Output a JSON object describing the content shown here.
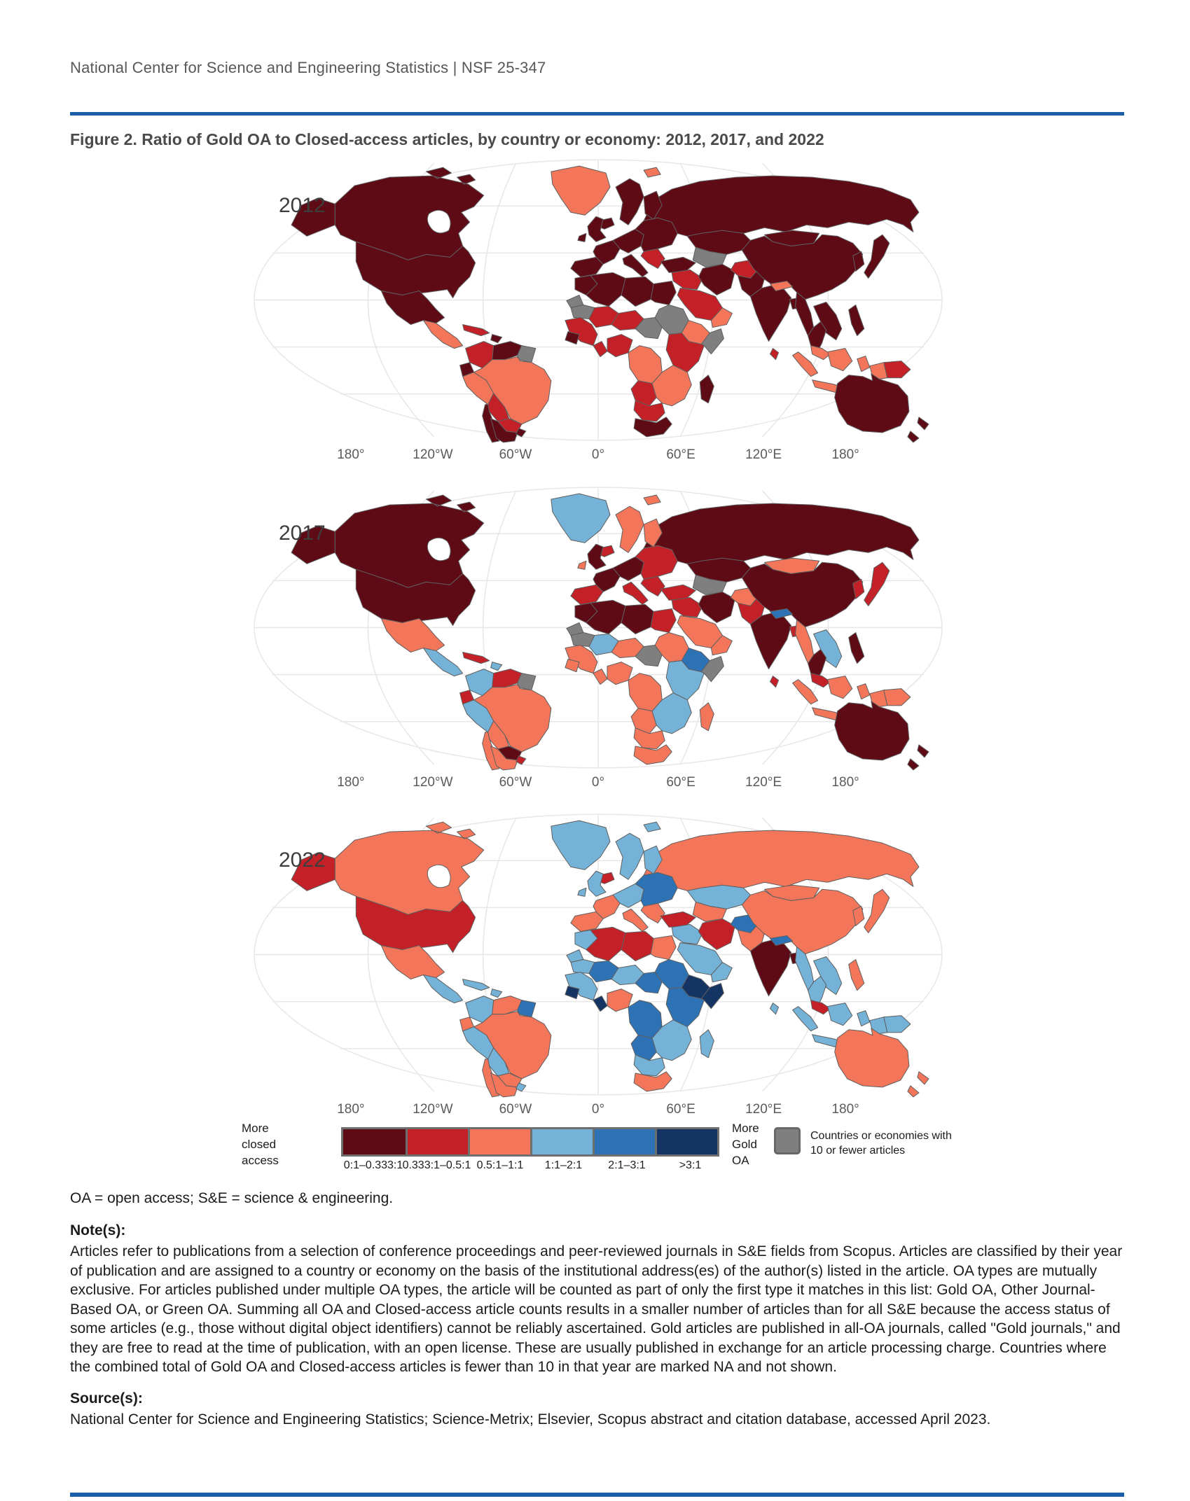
{
  "brand": {
    "rule_blue": "#1a5da9"
  },
  "header": {
    "text": "National Center for Science and Engineering Statistics  |  NSF 25-347"
  },
  "figure": {
    "title": "Figure 2. Ratio of Gold OA to Closed-access articles, by country or economy: 2012, 2017, and 2022"
  },
  "chart_data": {
    "type": "heatmap",
    "subtype": "world-choropleth-small-multiples",
    "title": "Ratio of Gold OA to Closed-access articles, by country or economy",
    "longitude_ticks": [
      "180°",
      "120°W",
      "60°W",
      "0°",
      "60°E",
      "120°E",
      "180°"
    ],
    "legend": {
      "left_label_lines": [
        "More",
        "closed",
        "access"
      ],
      "right_label_lines": [
        "More",
        "Gold",
        "OA"
      ],
      "categories": [
        {
          "label": "0:1–0.333:1",
          "color": "#5e0b16"
        },
        {
          "label": "0.333:1–0.5:1",
          "color": "#c32127"
        },
        {
          "label": "0.5:1–1:1",
          "color": "#f4765a"
        },
        {
          "label": "1:1–2:1",
          "color": "#74b2d8"
        },
        {
          "label": "2:1–3:1",
          "color": "#2d72b5"
        },
        {
          "label": ">3:1",
          "color": "#143563"
        }
      ],
      "na": {
        "label": "Countries or economies with 10 or fewer articles",
        "color": "#7f7f7f"
      }
    },
    "maps": [
      {
        "year": "2012",
        "regions": {
          "alaska": 0,
          "canada": 0,
          "greenland": 2,
          "iceland": 0,
          "svalbard": 2,
          "usa": 0,
          "mexico": 0,
          "camerica": 2,
          "cuba": 1,
          "hispaniola": 0,
          "colombia": 1,
          "venezuela": 0,
          "guyanas": "na",
          "ecuador": 0,
          "peru": 2,
          "brazil": 2,
          "bolivia": 1,
          "paraguay": 1,
          "chile": 0,
          "argentina": 0,
          "uruguay": 0,
          "uk": 0,
          "ireland": 0,
          "scandinavia": 0,
          "finland": 0,
          "iberia": 0,
          "france": 0,
          "centeurope": 0,
          "italy": 0,
          "balkans": 1,
          "easteurope": 0,
          "russia": 0,
          "kazakhstan": 0,
          "centralasia": "na",
          "turkey": 0,
          "levant_iraq": 1,
          "iran": 0,
          "afghanistan": 1,
          "pakistan": 0,
          "saudi": 1,
          "yemen_oman": 2,
          "india": 0,
          "nepal": 2,
          "bangladesh": 0,
          "srilanka": 1,
          "china": 0,
          "mongolia": 0,
          "korea": 0,
          "japan": 0,
          "myanmar": 0,
          "thailand": 0,
          "indochina": 0,
          "malaysia": 2,
          "indonesia": 2,
          "philippines": 0,
          "png": 1,
          "australia": 0,
          "newzealand": 0,
          "morocco": 0,
          "wsahara": "na",
          "algeria": 0,
          "libya": 0,
          "egypt": 0,
          "mauritania": "na",
          "mali": 1,
          "niger": 1,
          "chad": "na",
          "sudan": "na",
          "westafrica": 1,
          "guinea": 0,
          "ghana": 1,
          "nigeria": 1,
          "congo": 2,
          "horn": 2,
          "somalia": "na",
          "eastafrica": 1,
          "angola": 1,
          "zambia_moz": 2,
          "namibia_bots": 1,
          "southafrica": 0,
          "madagascar": 0
        }
      },
      {
        "year": "2017",
        "regions": {
          "alaska": 0,
          "canada": 0,
          "greenland": 3,
          "iceland": 1,
          "svalbard": 2,
          "usa": 0,
          "mexico": 2,
          "camerica": 3,
          "cuba": 1,
          "hispaniola": 3,
          "colombia": 3,
          "venezuela": 1,
          "guyanas": "na",
          "ecuador": 1,
          "peru": 3,
          "brazil": 2,
          "bolivia": 2,
          "paraguay": 0,
          "chile": 2,
          "argentina": 2,
          "uruguay": 1,
          "uk": 0,
          "ireland": 2,
          "scandinavia": 2,
          "finland": 2,
          "iberia": 1,
          "france": 0,
          "centeurope": 0,
          "italy": 1,
          "balkans": 1,
          "easteurope": 1,
          "russia": 0,
          "kazakhstan": 0,
          "centralasia": "na",
          "turkey": 1,
          "levant_iraq": 1,
          "iran": 0,
          "afghanistan": 2,
          "pakistan": 1,
          "saudi": 2,
          "yemen_oman": 2,
          "india": 0,
          "nepal": 4,
          "bangladesh": 1,
          "srilanka": 1,
          "china": 0,
          "mongolia": 2,
          "korea": 1,
          "japan": 1,
          "myanmar": 2,
          "thailand": 0,
          "indochina": 3,
          "malaysia": 1,
          "indonesia": 2,
          "philippines": 0,
          "png": 2,
          "australia": 0,
          "newzealand": 0,
          "morocco": 0,
          "wsahara": "na",
          "algeria": 0,
          "libya": 0,
          "egypt": 1,
          "mauritania": "na",
          "mali": 3,
          "niger": 2,
          "chad": "na",
          "sudan": 2,
          "westafrica": 2,
          "guinea": 2,
          "ghana": 2,
          "nigeria": 2,
          "congo": 2,
          "horn": 4,
          "somalia": "na",
          "eastafrica": 3,
          "angola": 2,
          "zambia_moz": 3,
          "namibia_bots": 2,
          "southafrica": 2,
          "madagascar": 2
        }
      },
      {
        "year": "2022",
        "regions": {
          "alaska": 1,
          "canada": 2,
          "greenland": 3,
          "iceland": 1,
          "svalbard": 3,
          "usa": 1,
          "mexico": 2,
          "camerica": 3,
          "cuba": 3,
          "hispaniola": 3,
          "colombia": 3,
          "venezuela": 2,
          "guyanas": 4,
          "ecuador": 2,
          "peru": 3,
          "brazil": 2,
          "bolivia": 3,
          "paraguay": 2,
          "chile": 2,
          "argentina": 2,
          "uruguay": 3,
          "uk": 3,
          "ireland": 3,
          "scandinavia": 3,
          "finland": 3,
          "iberia": 2,
          "france": 2,
          "centeurope": 3,
          "italy": 2,
          "balkans": 2,
          "easteurope": 4,
          "russia": 2,
          "kazakhstan": 3,
          "centralasia": 2,
          "turkey": 1,
          "levant_iraq": 3,
          "iran": 1,
          "afghanistan": 4,
          "pakistan": 2,
          "saudi": 3,
          "yemen_oman": 3,
          "india": 0,
          "nepal": 4,
          "bangladesh": 0,
          "srilanka": 3,
          "china": 2,
          "mongolia": 2,
          "korea": 2,
          "japan": 2,
          "myanmar": 3,
          "thailand": 3,
          "indochina": 3,
          "malaysia": 1,
          "indonesia": 3,
          "philippines": 2,
          "png": 3,
          "australia": 2,
          "newzealand": 2,
          "morocco": 3,
          "wsahara": 3,
          "algeria": 1,
          "libya": 1,
          "egypt": 2,
          "mauritania": 3,
          "mali": 4,
          "niger": 3,
          "chad": 4,
          "sudan": 4,
          "westafrica": 3,
          "guinea": 5,
          "ghana": 5,
          "nigeria": 2,
          "congo": 4,
          "horn": 5,
          "somalia": 5,
          "eastafrica": 4,
          "angola": 4,
          "zambia_moz": 3,
          "namibia_bots": 3,
          "southafrica": 2,
          "madagascar": 3
        }
      }
    ]
  },
  "footnotes": {
    "abbr": "OA = open access; S&E = science & engineering.",
    "notes_heading": "Note(s):",
    "notes": "Articles refer to publications from a selection of conference proceedings and peer-reviewed journals in S&E fields from Scopus. Articles are classified by their year of publication and are assigned to a country or economy on the basis of the institutional address(es) of the author(s) listed in the article. OA types are mutually exclusive. For articles published under multiple OA types, the article will be counted as part of only the first type it matches in this list: Gold OA, Other Journal-Based OA, or Green OA. Summing all OA and Closed-access article counts results in a smaller number of articles than for all S&E because the access status of some articles (e.g., those without digital object identifiers) cannot be reliably ascertained. Gold articles are published in all-OA journals, called \"Gold journals,\" and they are free to read at the time of publication, with an open license. These are usually published in exchange for an article processing charge. Countries where the combined total of Gold OA and Closed-access articles is fewer than 10 in that year are marked NA and not shown.",
    "sources_heading": "Source(s):",
    "sources": "National Center for Science and Engineering Statistics; Science-Metrix; Elsevier, Scopus abstract and citation database, accessed April 2023."
  }
}
